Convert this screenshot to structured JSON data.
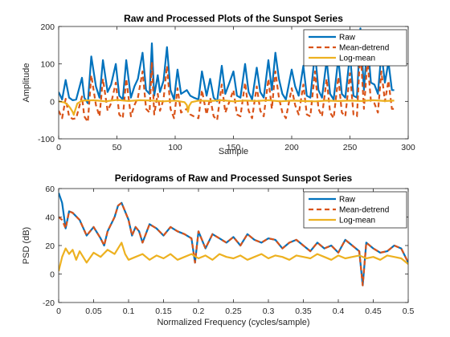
{
  "chart_data": [
    {
      "type": "line",
      "title": "Raw and Processed Plots of the Sunspot Series",
      "xlabel": "Sample",
      "ylabel": "Amplitude",
      "xlim": [
        0,
        300
      ],
      "ylim": [
        -100,
        200
      ],
      "xticks": [
        0,
        50,
        100,
        150,
        200,
        250,
        300
      ],
      "yticks": [
        -100,
        0,
        100,
        200
      ],
      "legend": "top-right",
      "grid": false,
      "series": [
        {
          "name": "Raw",
          "color": "#0072BD",
          "style": "solid",
          "x": [
            0,
            3,
            6,
            9,
            12,
            15,
            20,
            22,
            25,
            28,
            32,
            35,
            38,
            42,
            45,
            49,
            52,
            55,
            58,
            62,
            65,
            68,
            72,
            75,
            78,
            80,
            82,
            85,
            87,
            90,
            93,
            96,
            99,
            102,
            105,
            110,
            113,
            116,
            120,
            123,
            127,
            130,
            133,
            136,
            140,
            143,
            146,
            150,
            153,
            156,
            160,
            163,
            166,
            170,
            173,
            176,
            180,
            183,
            186,
            189,
            192,
            195,
            200,
            203,
            206,
            210,
            213,
            216,
            220,
            223,
            226,
            230,
            233,
            236,
            240,
            243,
            246,
            250,
            253,
            256,
            259,
            262,
            265,
            268,
            271,
            274,
            277,
            280,
            283,
            286,
            288
          ],
          "y": [
            25,
            5,
            57,
            10,
            3,
            5,
            63,
            10,
            -5,
            120,
            40,
            10,
            110,
            25,
            45,
            100,
            15,
            5,
            110,
            10,
            40,
            60,
            130,
            30,
            20,
            155,
            15,
            70,
            25,
            55,
            145,
            30,
            5,
            85,
            20,
            30,
            15,
            10,
            5,
            80,
            15,
            60,
            10,
            0,
            95,
            20,
            45,
            80,
            15,
            10,
            100,
            25,
            5,
            90,
            25,
            10,
            110,
            30,
            130,
            60,
            20,
            5,
            85,
            40,
            15,
            95,
            15,
            10,
            130,
            30,
            10,
            110,
            20,
            5,
            115,
            20,
            10,
            125,
            15,
            10,
            195,
            30,
            160,
            50,
            45,
            20,
            130,
            50,
            105,
            30,
            30
          ]
        },
        {
          "name": "Mean-detrend",
          "color": "#D95319",
          "style": "dashed",
          "x": [
            0,
            3,
            6,
            9,
            12,
            15,
            20,
            22,
            25,
            28,
            32,
            35,
            38,
            42,
            45,
            49,
            52,
            55,
            58,
            62,
            65,
            68,
            72,
            75,
            78,
            80,
            82,
            85,
            87,
            90,
            93,
            96,
            99,
            102,
            105,
            110,
            113,
            116,
            120,
            123,
            127,
            130,
            133,
            136,
            140,
            143,
            146,
            150,
            153,
            156,
            160,
            163,
            166,
            170,
            173,
            176,
            180,
            183,
            186,
            189,
            192,
            195,
            200,
            203,
            206,
            210,
            213,
            216,
            220,
            223,
            226,
            230,
            233,
            236,
            240,
            243,
            246,
            250,
            253,
            256,
            259,
            262,
            265,
            268,
            271,
            274,
            277,
            280,
            283,
            286,
            288
          ],
          "y": [
            -25,
            -45,
            7,
            -40,
            -47,
            -45,
            13,
            -40,
            -55,
            70,
            -10,
            -40,
            60,
            -25,
            -5,
            50,
            -35,
            -45,
            60,
            -40,
            -10,
            10,
            80,
            -20,
            -30,
            105,
            -35,
            20,
            -25,
            5,
            95,
            -20,
            -45,
            35,
            -30,
            -20,
            -35,
            -40,
            -45,
            30,
            -35,
            10,
            -40,
            -50,
            45,
            -30,
            -5,
            30,
            -35,
            -40,
            50,
            -25,
            -45,
            40,
            -25,
            -40,
            60,
            -20,
            80,
            10,
            -30,
            -45,
            35,
            -10,
            -35,
            45,
            -35,
            -40,
            80,
            -20,
            -40,
            60,
            -30,
            -45,
            65,
            -30,
            -40,
            75,
            -35,
            -40,
            145,
            -20,
            110,
            0,
            -5,
            -30,
            80,
            0,
            55,
            -20,
            -20
          ]
        },
        {
          "name": "Log-mean",
          "color": "#EDB120",
          "style": "solid",
          "x": [
            0,
            5,
            8,
            10,
            12,
            13,
            14,
            16,
            20,
            30,
            40,
            50,
            60,
            70,
            80,
            90,
            100,
            108,
            110,
            111,
            112,
            114,
            120,
            130,
            140,
            150,
            160,
            170,
            180,
            190,
            200,
            210,
            220,
            230,
            240,
            250,
            260,
            270,
            280,
            288
          ],
          "y": [
            0,
            -3,
            -10,
            -18,
            -28,
            -36,
            -25,
            -6,
            2,
            3,
            0,
            4,
            1,
            3,
            2,
            0,
            2,
            -2,
            -10,
            -28,
            -12,
            -2,
            2,
            1,
            3,
            0,
            2,
            1,
            3,
            0,
            2,
            1,
            0,
            2,
            1,
            2,
            1,
            3,
            1,
            2
          ]
        }
      ]
    },
    {
      "type": "line",
      "title": "Peridograms of Raw and Processed Sunspot Series",
      "xlabel": "Normalized Frequency (cycles/sample)",
      "ylabel": "PSD (dB)",
      "xlim": [
        0,
        0.5
      ],
      "ylim": [
        -20,
        60
      ],
      "xticks": [
        0,
        0.05,
        0.1,
        0.15,
        0.2,
        0.25,
        0.3,
        0.35,
        0.4,
        0.45,
        0.5
      ],
      "yticks": [
        -20,
        0,
        20,
        40,
        60
      ],
      "legend": "top-right",
      "grid": false,
      "series": [
        {
          "name": "Raw",
          "color": "#0072BD",
          "style": "solid",
          "x": [
            0,
            0.005,
            0.01,
            0.015,
            0.02,
            0.03,
            0.04,
            0.05,
            0.06,
            0.065,
            0.07,
            0.08,
            0.085,
            0.09,
            0.1,
            0.105,
            0.11,
            0.115,
            0.12,
            0.13,
            0.14,
            0.15,
            0.16,
            0.17,
            0.18,
            0.19,
            0.195,
            0.2,
            0.21,
            0.22,
            0.23,
            0.24,
            0.25,
            0.26,
            0.27,
            0.28,
            0.29,
            0.3,
            0.31,
            0.32,
            0.33,
            0.34,
            0.35,
            0.36,
            0.37,
            0.38,
            0.39,
            0.4,
            0.41,
            0.42,
            0.43,
            0.435,
            0.44,
            0.45,
            0.46,
            0.47,
            0.48,
            0.49,
            0.5
          ],
          "y": [
            57,
            50,
            32,
            44,
            43,
            38,
            27,
            33,
            25,
            20,
            30,
            40,
            48,
            50,
            38,
            27,
            33,
            30,
            22,
            35,
            32,
            27,
            33,
            30,
            28,
            25,
            8,
            30,
            18,
            28,
            25,
            22,
            26,
            20,
            28,
            24,
            22,
            25,
            24,
            18,
            22,
            24,
            20,
            16,
            22,
            18,
            20,
            15,
            24,
            20,
            16,
            -8,
            22,
            18,
            15,
            16,
            20,
            18,
            8
          ],
          "ylabel_note": ""
        },
        {
          "name": "Mean-detrend",
          "color": "#D95319",
          "style": "dashed",
          "x": [
            0,
            0.005,
            0.01,
            0.015,
            0.02,
            0.03,
            0.04,
            0.05,
            0.06,
            0.065,
            0.07,
            0.08,
            0.085,
            0.09,
            0.1,
            0.105,
            0.11,
            0.115,
            0.12,
            0.13,
            0.14,
            0.15,
            0.16,
            0.17,
            0.18,
            0.19,
            0.195,
            0.2,
            0.21,
            0.22,
            0.23,
            0.24,
            0.25,
            0.26,
            0.27,
            0.28,
            0.29,
            0.3,
            0.31,
            0.32,
            0.33,
            0.34,
            0.35,
            0.36,
            0.37,
            0.38,
            0.39,
            0.4,
            0.41,
            0.42,
            0.43,
            0.435,
            0.44,
            0.45,
            0.46,
            0.47,
            0.48,
            0.49,
            0.5
          ],
          "y": [
            40,
            38,
            32,
            44,
            43,
            38,
            27,
            33,
            25,
            20,
            30,
            40,
            48,
            50,
            38,
            27,
            33,
            30,
            22,
            35,
            32,
            27,
            33,
            30,
            28,
            25,
            8,
            30,
            18,
            28,
            25,
            22,
            26,
            20,
            28,
            24,
            22,
            25,
            24,
            18,
            22,
            24,
            20,
            16,
            22,
            18,
            20,
            15,
            24,
            20,
            16,
            -8,
            22,
            18,
            15,
            16,
            20,
            18,
            8
          ]
        },
        {
          "name": "Log-mean",
          "color": "#EDB120",
          "style": "solid",
          "x": [
            0,
            0.005,
            0.01,
            0.015,
            0.02,
            0.025,
            0.03,
            0.04,
            0.05,
            0.06,
            0.07,
            0.08,
            0.085,
            0.09,
            0.095,
            0.1,
            0.11,
            0.12,
            0.13,
            0.14,
            0.15,
            0.16,
            0.17,
            0.18,
            0.19,
            0.2,
            0.21,
            0.22,
            0.23,
            0.24,
            0.25,
            0.26,
            0.27,
            0.28,
            0.29,
            0.3,
            0.31,
            0.32,
            0.33,
            0.34,
            0.35,
            0.36,
            0.37,
            0.38,
            0.39,
            0.4,
            0.41,
            0.42,
            0.43,
            0.44,
            0.45,
            0.46,
            0.47,
            0.48,
            0.49,
            0.5
          ],
          "y": [
            2,
            12,
            18,
            14,
            17,
            10,
            16,
            8,
            15,
            12,
            17,
            14,
            18,
            22,
            14,
            10,
            12,
            14,
            10,
            13,
            11,
            14,
            10,
            12,
            14,
            11,
            13,
            10,
            14,
            12,
            11,
            13,
            10,
            12,
            14,
            11,
            13,
            12,
            10,
            13,
            12,
            11,
            14,
            12,
            10,
            13,
            11,
            12,
            13,
            11,
            12,
            10,
            13,
            12,
            11,
            7
          ]
        }
      ]
    }
  ]
}
